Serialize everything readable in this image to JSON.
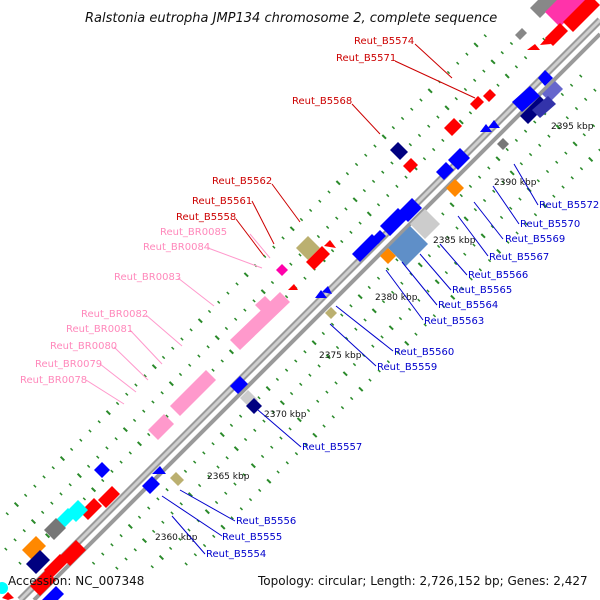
{
  "title": "Ralstonia eutropha JMP134 chromosome 2, complete sequence",
  "footer": {
    "accession": "Accession: NC_007348",
    "topology": "Topology: circular; Length: 2,726,152 bp; Genes: 2,427"
  },
  "colors": {
    "forward": "#ff0000",
    "reverse": "#0000ff",
    "rna": "#ff99cc",
    "backbone": "#999999",
    "tick": "#2a8a2a"
  },
  "kbp_labels": [
    "2395 kbp",
    "2390 kbp",
    "2385 kbp",
    "2380 kbp",
    "2375 kbp",
    "2370 kbp",
    "2365 kbp",
    "2360 kbp"
  ],
  "labels_red": [
    "Reut_B5574",
    "Reut_B5571",
    "Reut_B5568",
    "Reut_B5562",
    "Reut_B5561",
    "Reut_B5558"
  ],
  "labels_pink": [
    "Reut_BR0085",
    "Reut_BR0084",
    "Reut_BR0083",
    "Reut_BR0082",
    "Reut_BR0081",
    "Reut_BR0080",
    "Reut_BR0079",
    "Reut_BR0078"
  ],
  "labels_blue": [
    "Reut_B5572",
    "Reut_B5570",
    "Reut_B5569",
    "Reut_B5567",
    "Reut_B5566",
    "Reut_B5565",
    "Reut_B5564",
    "Reut_B5563",
    "Reut_B5560",
    "Reut_B5559",
    "Reut_B5557",
    "Reut_B5556",
    "Reut_B5555",
    "Reut_B5554"
  ]
}
